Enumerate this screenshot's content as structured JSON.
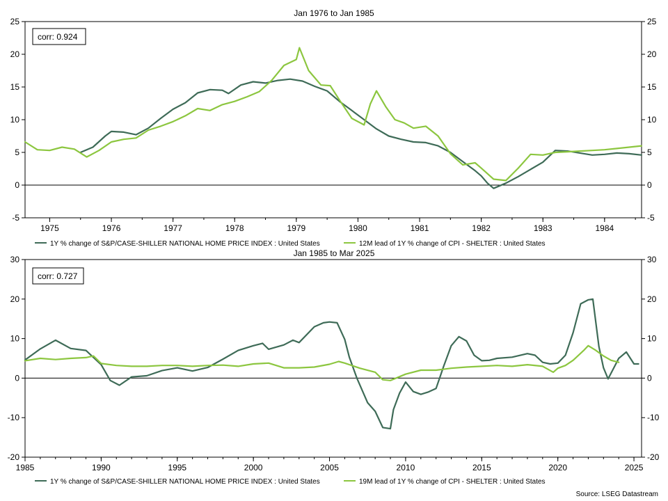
{
  "source": "Source: LSEG Datastream",
  "colors": {
    "dark": "#3e6b57",
    "light": "#8cc63f",
    "axis": "#000000"
  },
  "chart_data": [
    {
      "type": "line",
      "title": "Jan 1976 to Jan 1985",
      "annotation": "corr: 0.924",
      "x_ticks": [
        "1975",
        "1976",
        "1977",
        "1978",
        "1979",
        "1980",
        "1981",
        "1982",
        "1983",
        "1984"
      ],
      "xlim": [
        1974.6,
        1984.6
      ],
      "ylim": [
        -5,
        25
      ],
      "y_ticks": [
        "-5",
        "0",
        "5",
        "10",
        "15",
        "20",
        "25"
      ],
      "series": [
        {
          "name": "1Y % change of S&P/CASE-SHILLER NATIONAL HOME PRICE INDEX : United States",
          "color": "dark",
          "x": [
            1975.5,
            1975.7,
            1975.9,
            1976.0,
            1976.2,
            1976.4,
            1976.6,
            1976.8,
            1977.0,
            1977.2,
            1977.4,
            1977.6,
            1977.8,
            1977.9,
            1978.1,
            1978.3,
            1978.5,
            1978.7,
            1978.9,
            1979.1,
            1979.3,
            1979.5,
            1979.7,
            1979.9,
            1980.1,
            1980.3,
            1980.5,
            1980.7,
            1980.9,
            1981.1,
            1981.3,
            1981.5,
            1981.7,
            1981.9,
            1982.0,
            1982.1,
            1982.2,
            1982.4,
            1982.6,
            1982.8,
            1983.0,
            1983.2,
            1983.4,
            1983.6,
            1983.8,
            1984.0,
            1984.2,
            1984.4,
            1984.6
          ],
          "y": [
            5.0,
            5.8,
            7.5,
            8.2,
            8.1,
            7.7,
            8.7,
            10.2,
            11.6,
            12.6,
            14.1,
            14.6,
            14.5,
            14.0,
            15.3,
            15.8,
            15.6,
            16.0,
            16.2,
            15.9,
            15.1,
            14.4,
            12.8,
            11.4,
            10.0,
            8.6,
            7.5,
            7.0,
            6.6,
            6.5,
            6.0,
            5.0,
            3.6,
            2.2,
            1.4,
            0.3,
            -0.5,
            0.3,
            1.3,
            2.4,
            3.5,
            5.3,
            5.2,
            4.9,
            4.6,
            4.7,
            4.9,
            4.8,
            4.6
          ]
        },
        {
          "name": "12M lead of 1Y % change of CPI - SHELTER : United States",
          "color": "light",
          "x": [
            1974.6,
            1974.8,
            1975.0,
            1975.2,
            1975.4,
            1975.6,
            1975.8,
            1976.0,
            1976.2,
            1976.4,
            1976.6,
            1976.8,
            1977.0,
            1977.2,
            1977.4,
            1977.6,
            1977.8,
            1978.0,
            1978.2,
            1978.4,
            1978.6,
            1978.8,
            1979.0,
            1979.05,
            1979.2,
            1979.4,
            1979.55,
            1979.7,
            1979.9,
            1980.1,
            1980.2,
            1980.3,
            1980.45,
            1980.6,
            1980.75,
            1980.9,
            1981.1,
            1981.3,
            1981.5,
            1981.7,
            1981.9,
            1982.0,
            1982.2,
            1982.4,
            1982.6,
            1982.8,
            1983.0,
            1983.2,
            1983.4,
            1983.6,
            1983.8,
            1984.0,
            1984.2,
            1984.4,
            1984.6
          ],
          "y": [
            6.6,
            5.4,
            5.3,
            5.8,
            5.5,
            4.3,
            5.3,
            6.6,
            7.0,
            7.2,
            8.4,
            9.0,
            9.7,
            10.6,
            11.7,
            11.4,
            12.3,
            12.8,
            13.5,
            14.3,
            16.0,
            18.3,
            19.2,
            21.0,
            17.5,
            15.3,
            15.2,
            13.0,
            10.2,
            9.2,
            12.4,
            14.4,
            12.0,
            10.0,
            9.5,
            8.7,
            9.0,
            7.5,
            4.8,
            3.1,
            3.4,
            2.6,
            0.9,
            0.7,
            2.6,
            4.7,
            4.6,
            5.0,
            5.1,
            5.2,
            5.3,
            5.4,
            5.6,
            5.8,
            6.0
          ]
        }
      ]
    },
    {
      "type": "line",
      "title": "Jan 1985 to Mar 2025",
      "annotation": "corr: 0.727",
      "x_ticks": [
        "1985",
        "1990",
        "1995",
        "2000",
        "2005",
        "2010",
        "2015",
        "2020",
        "2025"
      ],
      "xlim": [
        1985,
        2025.5
      ],
      "ylim": [
        -20,
        30
      ],
      "y_ticks": [
        "-20",
        "-10",
        "0",
        "10",
        "20",
        "30"
      ],
      "series": [
        {
          "name": "1Y % change of S&P/CASE-SHILLER NATIONAL HOME PRICE INDEX : United States",
          "color": "dark",
          "x": [
            1985.0,
            1986.0,
            1987.0,
            1988.0,
            1989.0,
            1990.0,
            1990.6,
            1991.2,
            1992.0,
            1993.0,
            1994.0,
            1995.0,
            1996.0,
            1997.0,
            1998.0,
            1999.0,
            2000.0,
            2000.6,
            2001.0,
            2002.0,
            2002.6,
            2003.0,
            2004.0,
            2004.6,
            2005.0,
            2005.5,
            2006.0,
            2006.3,
            2006.8,
            2007.5,
            2008.0,
            2008.5,
            2009.0,
            2009.2,
            2009.6,
            2010.0,
            2010.5,
            2011.0,
            2011.5,
            2012.0,
            2012.5,
            2013.0,
            2013.5,
            2014.0,
            2014.5,
            2015.0,
            2015.5,
            2016.0,
            2017.0,
            2018.0,
            2018.5,
            2019.0,
            2019.5,
            2020.0,
            2020.5,
            2021.0,
            2021.5,
            2022.0,
            2022.3,
            2022.7,
            2023.0,
            2023.3,
            2023.6,
            2024.0,
            2024.5,
            2025.0,
            2025.3
          ],
          "y": [
            4.6,
            7.4,
            9.6,
            7.5,
            7.0,
            3.4,
            -0.6,
            -1.8,
            0.3,
            0.6,
            1.9,
            2.6,
            1.8,
            2.7,
            4.8,
            7.0,
            8.2,
            8.8,
            7.3,
            8.4,
            9.6,
            9.0,
            13.0,
            14.0,
            14.2,
            14.0,
            9.8,
            5.3,
            0.0,
            -6.2,
            -8.4,
            -12.5,
            -12.8,
            -8.0,
            -3.8,
            -1.0,
            -3.4,
            -4.1,
            -3.5,
            -2.6,
            3.0,
            8.2,
            10.5,
            9.4,
            5.8,
            4.4,
            4.5,
            5.0,
            5.3,
            6.2,
            5.8,
            4.0,
            3.6,
            3.8,
            5.8,
            11.5,
            18.8,
            19.8,
            20.0,
            8.0,
            2.6,
            -0.2,
            2.0,
            5.0,
            6.6,
            3.6,
            3.6
          ]
        },
        {
          "name": "19M lead of 1Y % change of CPI - SHELTER : United States",
          "color": "light",
          "x": [
            1985.0,
            1986.0,
            1987.0,
            1988.0,
            1989.0,
            1989.5,
            1990.0,
            1991.0,
            1992.0,
            1993.0,
            1994.0,
            1995.0,
            1996.0,
            1997.0,
            1998.0,
            1999.0,
            2000.0,
            2001.0,
            2002.0,
            2003.0,
            2004.0,
            2005.0,
            2005.6,
            2006.0,
            2007.0,
            2008.0,
            2008.5,
            2009.0,
            2010.0,
            2011.0,
            2012.0,
            2013.0,
            2014.0,
            2015.0,
            2016.0,
            2017.0,
            2018.0,
            2019.0,
            2019.7,
            2020.0,
            2020.5,
            2021.0,
            2021.7,
            2022.0,
            2022.5,
            2023.0,
            2023.5,
            2024.0
          ],
          "y": [
            4.4,
            5.0,
            4.7,
            5.0,
            5.2,
            5.6,
            3.7,
            3.2,
            3.0,
            3.0,
            3.2,
            3.2,
            3.0,
            3.2,
            3.3,
            3.0,
            3.6,
            3.8,
            2.6,
            2.6,
            2.8,
            3.5,
            4.2,
            3.8,
            2.5,
            1.5,
            -0.4,
            -0.6,
            1.0,
            2.0,
            2.0,
            2.5,
            2.8,
            3.0,
            3.2,
            3.0,
            3.4,
            3.0,
            1.5,
            2.5,
            3.2,
            4.5,
            7.0,
            8.2,
            7.0,
            5.6,
            4.5,
            4.0
          ]
        }
      ]
    }
  ]
}
